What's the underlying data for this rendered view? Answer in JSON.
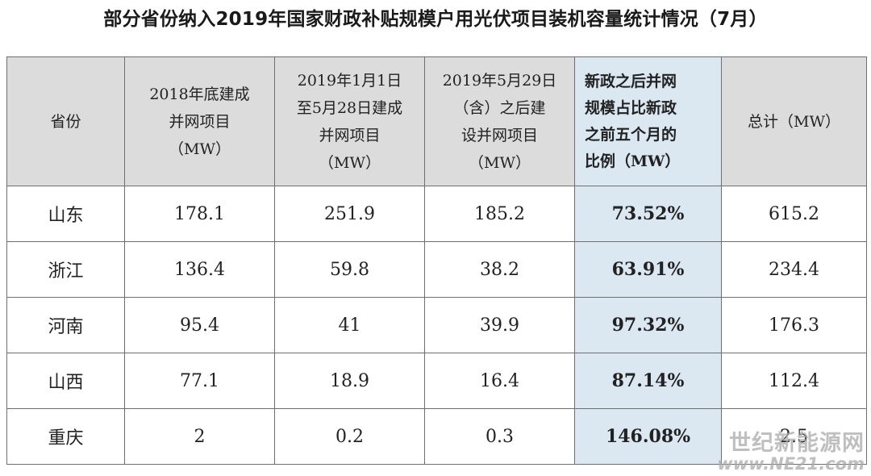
{
  "title": "部分省份纳入2019年国家财政补贴规模户用光伏项目装机容量统计情况（7月）",
  "table": {
    "headers": [
      [
        "省份"
      ],
      [
        "2018年底建成",
        "并网项目",
        "（MW）"
      ],
      [
        "2019年1月1日",
        "至5月28日建成",
        "并网项目",
        "（MW）"
      ],
      [
        "2019年5月29日",
        "（含）之后建",
        "设并网项目",
        "（MW）"
      ],
      [
        "新政之后并网",
        "规模占比新政",
        "之前五个月的",
        "比例（MW）"
      ],
      [
        "总计（MW）"
      ]
    ],
    "rows": [
      [
        "山东",
        "178.1",
        "251.9",
        "185.2",
        "73.52%",
        "615.2"
      ],
      [
        "浙江",
        "136.4",
        "59.8",
        "38.2",
        "63.91%",
        "234.4"
      ],
      [
        "河南",
        "95.4",
        "41",
        "39.9",
        "97.32%",
        "176.3"
      ],
      [
        "山西",
        "77.1",
        "18.9",
        "16.4",
        "87.14%",
        "112.4"
      ],
      [
        "重庆",
        "2",
        "0.2",
        "0.3",
        "146.08%",
        "2.5"
      ]
    ]
  },
  "watermark": {
    "text": "世纪新能源网",
    "url": "www.NE21.com"
  },
  "colors": {
    "header_bg": "#dcdcdc",
    "highlight_bg": "#dbe8f2",
    "border": "#6f6f6f"
  }
}
